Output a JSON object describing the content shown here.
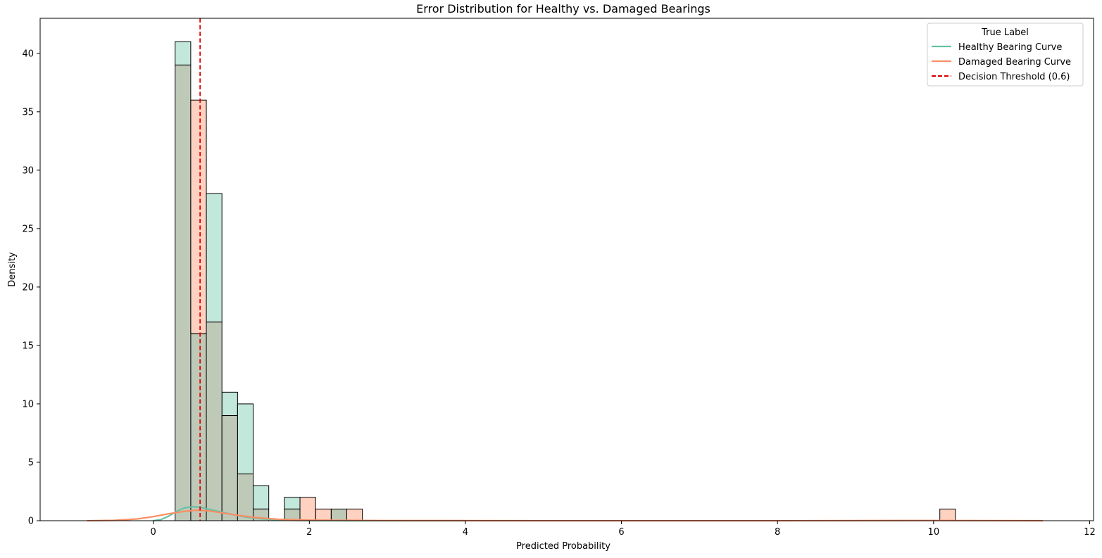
{
  "chart_data": {
    "type": "bar",
    "title": "Error Distribution for Healthy vs. Damaged Bearings",
    "xlabel": "Predicted Probability",
    "ylabel": "Density",
    "xlim": [
      -1.45,
      12.05
    ],
    "ylim": [
      0,
      43
    ],
    "x_ticks": [
      0,
      2,
      4,
      6,
      8,
      10,
      12
    ],
    "y_ticks": [
      0,
      5,
      10,
      15,
      20,
      25,
      30,
      35,
      40
    ],
    "grid": false,
    "legend": {
      "title": "True Label",
      "placement": "top-right",
      "entries": [
        {
          "label": "Healthy Bearing Curve",
          "color": "#66c2a5",
          "style": "solid"
        },
        {
          "label": "Damaged Bearing Curve",
          "color": "#fc8d62",
          "style": "solid"
        },
        {
          "label": "Decision Threshold (0.6)",
          "color": "#e00000",
          "style": "dashed"
        }
      ]
    },
    "threshold": 0.6,
    "colors": {
      "healthy_fill": "#66c2a5",
      "damaged_fill": "#fc8d62",
      "overlap_fill": "#bec9b8",
      "edge": "#000000",
      "threshold_line": "#e00000"
    },
    "bin_width": 0.2,
    "bin_starts": [
      0.28,
      0.48,
      0.68,
      0.88,
      1.08,
      1.28,
      1.48,
      1.68,
      1.88,
      2.08,
      2.28,
      2.48,
      10.08
    ],
    "series": [
      {
        "name": "Healthy",
        "values": [
          41,
          16,
          28,
          11,
          10,
          3,
          0,
          2,
          0,
          0,
          1,
          0,
          0
        ]
      },
      {
        "name": "Damaged",
        "values": [
          39,
          36,
          17,
          9,
          4,
          1,
          0,
          1,
          2,
          1,
          1,
          1,
          1
        ]
      }
    ],
    "curves": [
      {
        "name": "Healthy Bearing Curve",
        "x": [
          0.0,
          0.1,
          0.2,
          0.3,
          0.4,
          0.5,
          0.6,
          0.7,
          0.8,
          0.9,
          1.0,
          1.2,
          1.4,
          1.6,
          1.8,
          2.0,
          2.5,
          3.0,
          4.0
        ],
        "y": [
          0.0,
          0.1,
          0.4,
          0.8,
          1.1,
          1.2,
          1.15,
          1.0,
          0.85,
          0.7,
          0.55,
          0.3,
          0.15,
          0.07,
          0.03,
          0.01,
          0.0,
          0.0,
          0.0
        ]
      },
      {
        "name": "Damaged Bearing Curve",
        "x": [
          -0.85,
          -0.5,
          -0.2,
          0.0,
          0.2,
          0.4,
          0.55,
          0.7,
          0.9,
          1.1,
          1.3,
          1.6,
          2.0,
          3.0,
          5.0,
          8.0,
          10.0,
          11.4
        ],
        "y": [
          0.0,
          0.03,
          0.15,
          0.35,
          0.6,
          0.8,
          0.9,
          0.85,
          0.65,
          0.45,
          0.28,
          0.12,
          0.05,
          0.01,
          0.0,
          0.0,
          0.02,
          0.0
        ]
      }
    ]
  }
}
